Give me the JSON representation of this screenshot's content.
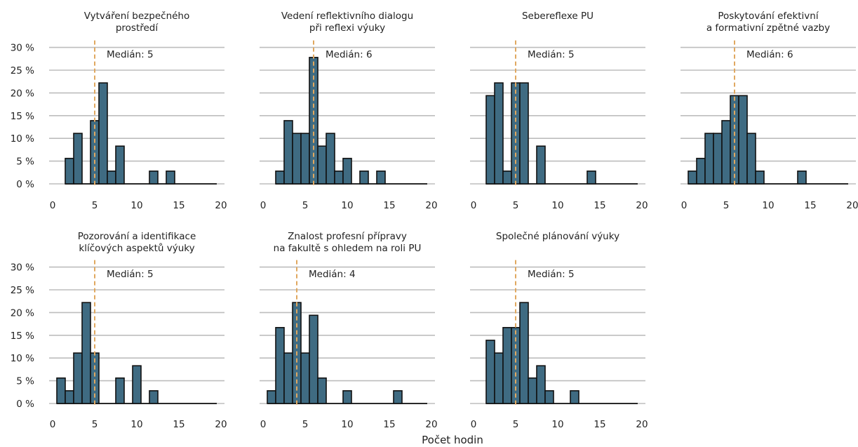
{
  "xlabel": "Počet hodin",
  "median_color": "#e0a860",
  "bar_color": "#3f6b82",
  "grid_color": "#bdbdbd",
  "chart_data": [
    {
      "type": "bar",
      "title": "Vytváření bezpečného prostředí",
      "title_lines": [
        "Vytváření bezpečného",
        "prostředí"
      ],
      "median_label": "Medián: 5",
      "median": 5,
      "x": [
        2,
        3,
        4,
        5,
        6,
        7,
        8,
        9,
        10,
        11,
        12,
        13,
        14
      ],
      "values": [
        5.6,
        11.1,
        0,
        13.9,
        22.2,
        2.8,
        8.3,
        0,
        0,
        0,
        2.8,
        0,
        2.8
      ],
      "xlim": [
        0,
        20
      ],
      "ylim": [
        0,
        30
      ],
      "xticks": [
        "0",
        "5",
        "10",
        "15",
        "20"
      ],
      "yticks": [
        "0 %",
        "5 %",
        "10 %",
        "15 %",
        "20 %",
        "25 %",
        "30 %"
      ]
    },
    {
      "type": "bar",
      "title": "Vedení reflektivního dialogu při reflexi výuky",
      "title_lines": [
        "Vedení reflektivního dialogu",
        "při reflexi výuky"
      ],
      "median_label": "Medián: 6",
      "median": 6,
      "x": [
        2,
        3,
        4,
        5,
        6,
        7,
        8,
        9,
        10,
        11,
        12,
        13,
        14
      ],
      "values": [
        2.8,
        13.9,
        11.1,
        11.1,
        27.8,
        8.3,
        11.1,
        2.8,
        5.6,
        0,
        2.8,
        0,
        2.8
      ],
      "xlim": [
        0,
        20
      ],
      "ylim": [
        0,
        30
      ],
      "xticks": [
        "0",
        "5",
        "10",
        "15",
        "20"
      ],
      "yticks": [
        "0 %",
        "5 %",
        "10 %",
        "15 %",
        "20 %",
        "25 %",
        "30 %"
      ]
    },
    {
      "type": "bar",
      "title": "Sebereflexe PU",
      "title_lines": [
        "Sebereflexe PU"
      ],
      "median_label": "Medián: 5",
      "median": 5,
      "x": [
        2,
        3,
        4,
        5,
        6,
        7,
        8,
        9,
        10,
        11,
        12,
        13,
        14
      ],
      "values": [
        19.4,
        22.2,
        2.8,
        22.2,
        22.2,
        0,
        8.3,
        0,
        0,
        0,
        0,
        0,
        2.8
      ],
      "xlim": [
        0,
        20
      ],
      "ylim": [
        0,
        30
      ],
      "xticks": [
        "0",
        "5",
        "10",
        "15",
        "20"
      ],
      "yticks": [
        "0 %",
        "5 %",
        "10 %",
        "15 %",
        "20 %",
        "25 %",
        "30 %"
      ]
    },
    {
      "type": "bar",
      "title": "Poskytování efektivní a formativní zpětné vazby",
      "title_lines": [
        "Poskytování efektivní",
        "a formativní zpětné vazby"
      ],
      "median_label": "Medián: 6",
      "median": 6,
      "x": [
        1,
        2,
        3,
        4,
        5,
        6,
        7,
        8,
        9,
        10,
        11,
        12,
        13,
        14
      ],
      "values": [
        2.8,
        5.6,
        11.1,
        11.1,
        13.9,
        19.4,
        19.4,
        11.1,
        2.8,
        0,
        0,
        0,
        0,
        2.8
      ],
      "xlim": [
        0,
        20
      ],
      "ylim": [
        0,
        30
      ],
      "xticks": [
        "0",
        "5",
        "10",
        "15",
        "20"
      ],
      "yticks": [
        "0 %",
        "5 %",
        "10 %",
        "15 %",
        "20 %",
        "25 %",
        "30 %"
      ]
    },
    {
      "type": "bar",
      "title": "Pozorování a identifikace klíčových aspektů výuky",
      "title_lines": [
        "Pozorování a identifikace",
        "klíčových aspektů výuky"
      ],
      "median_label": "Medián: 5",
      "median": 5,
      "x": [
        1,
        2,
        3,
        4,
        5,
        6,
        7,
        8,
        9,
        10,
        11,
        12
      ],
      "values": [
        5.6,
        2.8,
        11.1,
        22.2,
        11.1,
        0,
        0,
        5.6,
        0,
        8.3,
        0,
        2.8
      ],
      "xlim": [
        0,
        20
      ],
      "ylim": [
        0,
        30
      ],
      "xticks": [
        "0",
        "5",
        "10",
        "15",
        "20"
      ],
      "yticks": [
        "0 %",
        "5 %",
        "10 %",
        "15 %",
        "20 %",
        "25 %",
        "30 %"
      ]
    },
    {
      "type": "bar",
      "title": "Znalost profesní přípravy na fakultě s ohledem na roli PU",
      "title_lines": [
        "Znalost profesní přípravy",
        "na fakultě s ohledem na roli PU"
      ],
      "median_label": "Medián: 4",
      "median": 4,
      "x": [
        1,
        2,
        3,
        4,
        5,
        6,
        7,
        8,
        9,
        10,
        11,
        12,
        13,
        14,
        15,
        16
      ],
      "values": [
        2.8,
        16.7,
        11.1,
        22.2,
        11.1,
        19.4,
        5.6,
        0,
        0,
        2.8,
        0,
        0,
        0,
        0,
        0,
        2.8
      ],
      "xlim": [
        0,
        20
      ],
      "ylim": [
        0,
        30
      ],
      "xticks": [
        "0",
        "5",
        "10",
        "15",
        "20"
      ],
      "yticks": [
        "0 %",
        "5 %",
        "10 %",
        "15 %",
        "20 %",
        "25 %",
        "30 %"
      ]
    },
    {
      "type": "bar",
      "title": "Společné plánování výuky",
      "title_lines": [
        "Společné plánování výuky"
      ],
      "median_label": "Medián: 5",
      "median": 5,
      "x": [
        2,
        3,
        4,
        5,
        6,
        7,
        8,
        9,
        10,
        11,
        12
      ],
      "values": [
        13.9,
        11.1,
        16.7,
        16.7,
        22.2,
        5.6,
        8.3,
        2.8,
        0,
        0,
        2.8
      ],
      "xlim": [
        0,
        20
      ],
      "ylim": [
        0,
        30
      ],
      "xticks": [
        "0",
        "5",
        "10",
        "15",
        "20"
      ],
      "yticks": [
        "0 %",
        "5 %",
        "10 %",
        "15 %",
        "20 %",
        "25 %",
        "30 %"
      ]
    }
  ]
}
